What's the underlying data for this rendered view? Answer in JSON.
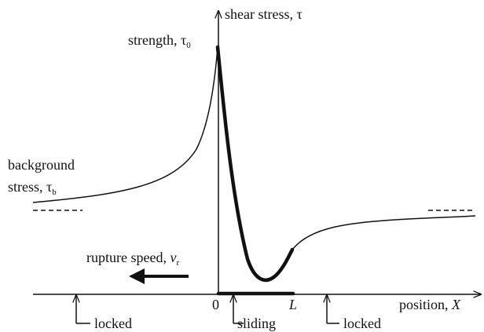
{
  "y_axis": {
    "label": "shear stress, τ"
  },
  "strength": {
    "label": "strength, τ",
    "sub": "0"
  },
  "background": {
    "line1": "background",
    "line2": "stress, τ",
    "sub": "b"
  },
  "rupture": {
    "label": "rupture speed, ",
    "var": "v",
    "sub": "r"
  },
  "x_axis": {
    "label": "position, ",
    "var": "X",
    "origin": "0",
    "end": "L"
  },
  "zones": [
    "locked",
    "sliding",
    "locked"
  ]
}
